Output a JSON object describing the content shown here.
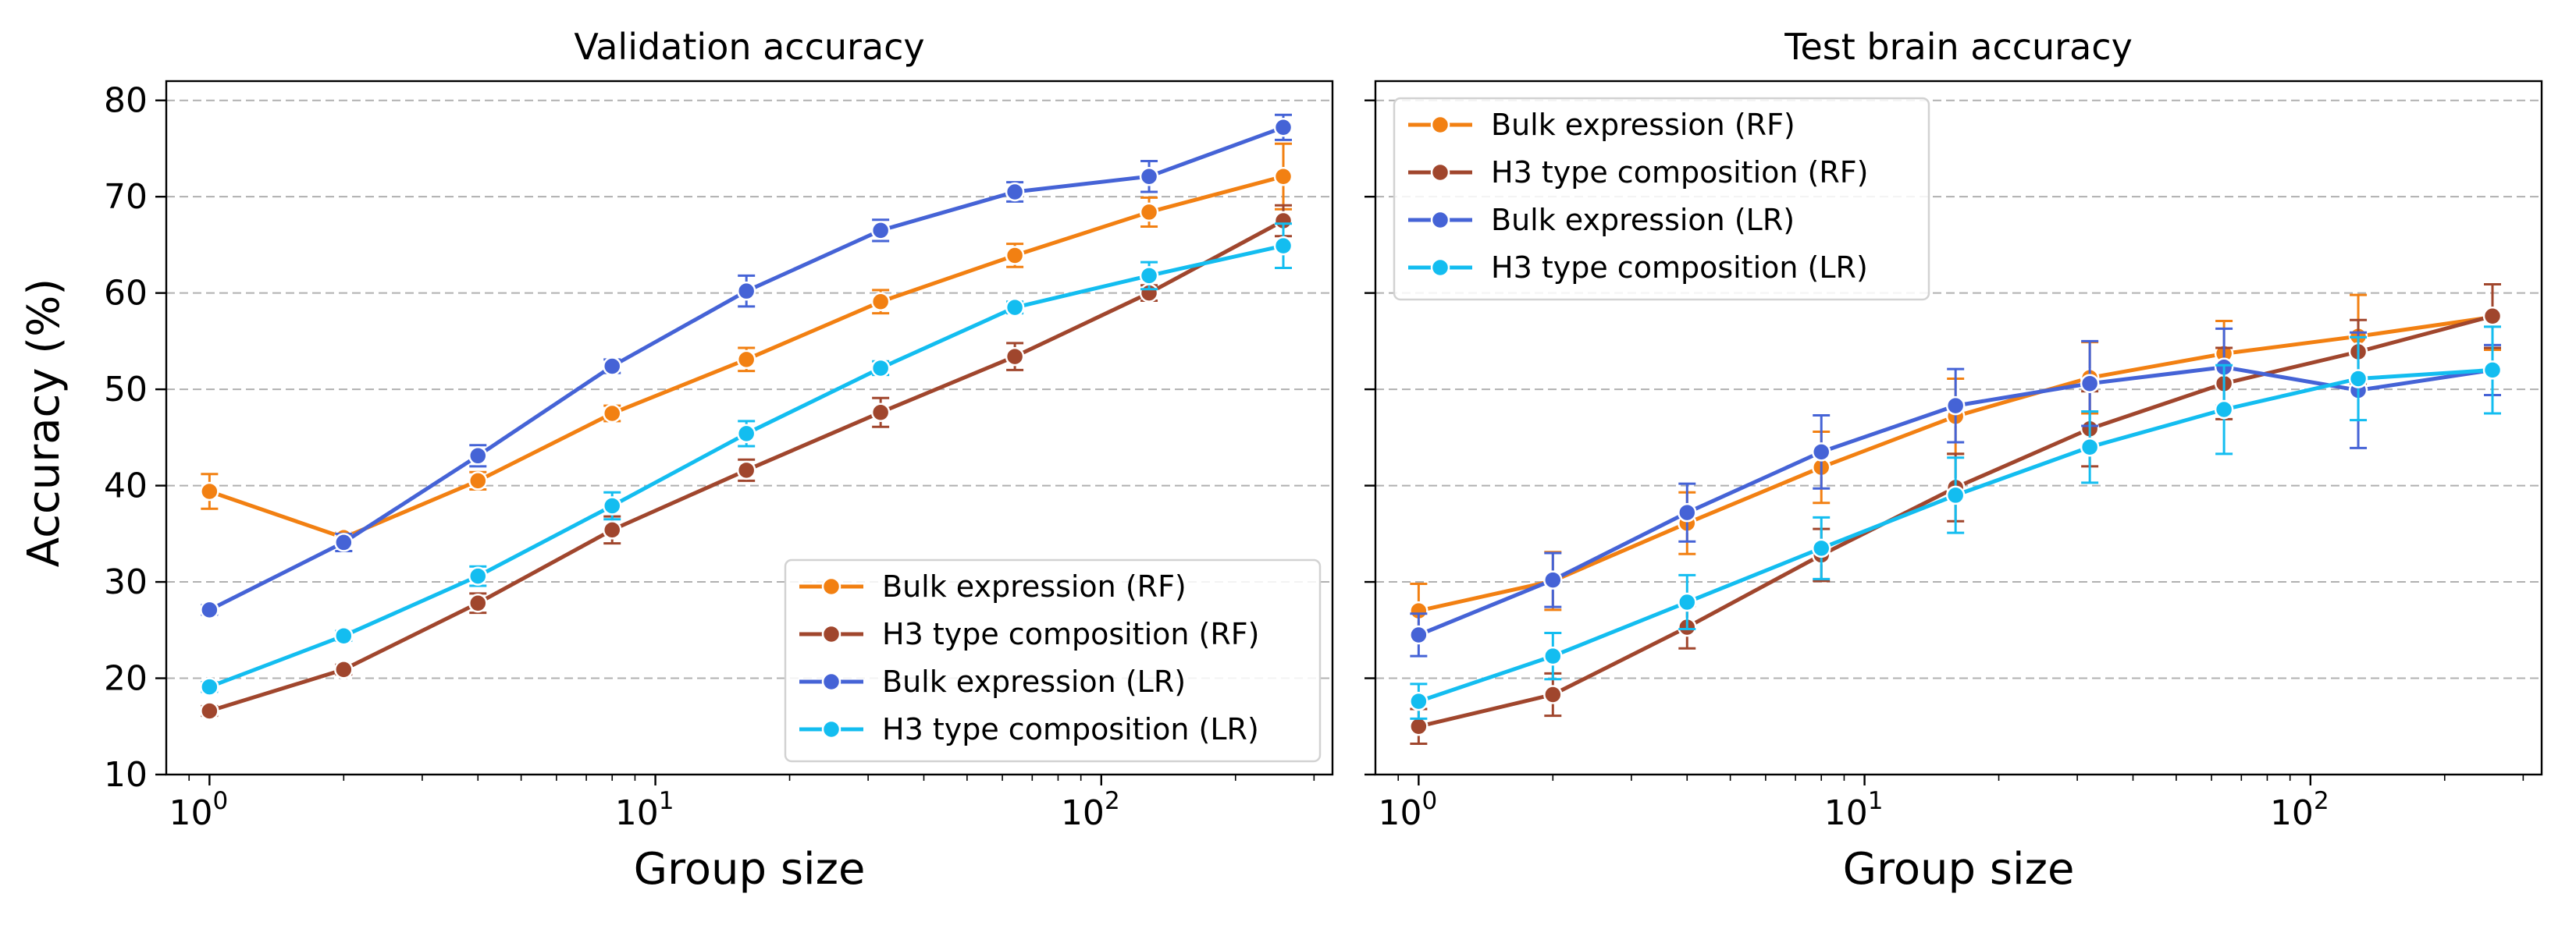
{
  "figure": {
    "ylabel": "Accuracy (%)"
  },
  "chart_data": [
    {
      "type": "line",
      "title": "Validation accuracy",
      "xlabel": "Group size",
      "ylabel": "Accuracy (%)",
      "xscale": "log",
      "xlim": [
        0.8,
        330
      ],
      "ylim": [
        10,
        82
      ],
      "yticks": [
        10,
        20,
        30,
        40,
        50,
        60,
        70,
        80
      ],
      "xticks": [
        {
          "base": "10",
          "exp": "0",
          "value": 1
        },
        {
          "base": "10",
          "exp": "1",
          "value": 10
        },
        {
          "base": "10",
          "exp": "2",
          "value": 100
        }
      ],
      "grid": "y dashed",
      "legend_position": "bottom-right",
      "x": [
        1,
        2,
        4,
        8,
        16,
        32,
        64,
        128,
        256
      ],
      "series": [
        {
          "name": "Bulk expression (RF)",
          "color": "#f28012",
          "values": [
            39.4,
            34.6,
            40.5,
            47.5,
            53.1,
            59.1,
            63.9,
            68.4,
            72.1
          ],
          "errors": [
            1.8,
            0.5,
            0.9,
            0.8,
            1.2,
            1.2,
            1.2,
            1.5,
            3.4
          ]
        },
        {
          "name": "H3 type composition (RF)",
          "color": "#a0462d",
          "values": [
            16.6,
            20.9,
            27.8,
            35.4,
            41.6,
            47.6,
            53.4,
            60.0,
            67.5
          ],
          "errors": [
            0.5,
            0.5,
            1.0,
            1.4,
            1.1,
            1.5,
            1.4,
            0.8,
            1.6
          ]
        },
        {
          "name": "Bulk expression (LR)",
          "color": "#4563d6",
          "values": [
            27.1,
            34.1,
            43.1,
            52.4,
            60.2,
            66.5,
            70.5,
            72.1,
            77.2
          ],
          "errors": [
            0.5,
            0.9,
            1.1,
            0.7,
            1.6,
            1.1,
            1.0,
            1.6,
            1.3
          ]
        },
        {
          "name": "H3 type composition (LR)",
          "color": "#13bdf0",
          "values": [
            19.1,
            24.4,
            30.6,
            37.9,
            45.4,
            52.2,
            58.5,
            61.8,
            64.9
          ],
          "errors": [
            0.5,
            0.5,
            1.0,
            1.4,
            1.3,
            0.7,
            0.6,
            1.4,
            2.3
          ]
        }
      ]
    },
    {
      "type": "line",
      "title": "Test brain accuracy",
      "xlabel": "Group size",
      "xscale": "log",
      "xlim": [
        0.8,
        330
      ],
      "ylim": [
        10,
        82
      ],
      "yticks": [
        10,
        20,
        30,
        40,
        50,
        60,
        70,
        80
      ],
      "xticks": [
        {
          "base": "10",
          "exp": "0",
          "value": 1
        },
        {
          "base": "10",
          "exp": "1",
          "value": 10
        },
        {
          "base": "10",
          "exp": "2",
          "value": 100
        }
      ],
      "grid": "y dashed",
      "legend_position": "top-left",
      "x": [
        1,
        2,
        4,
        8,
        16,
        32,
        64,
        128,
        256
      ],
      "series": [
        {
          "name": "Bulk expression (RF)",
          "color": "#f28012",
          "values": [
            27.0,
            30.1,
            36.1,
            41.9,
            47.2,
            51.2,
            53.7,
            55.5,
            57.5
          ],
          "errors": [
            2.8,
            3.0,
            3.2,
            3.7,
            3.9,
            3.7,
            3.4,
            4.3,
            3.4
          ]
        },
        {
          "name": "H3 type composition (RF)",
          "color": "#a0462d",
          "values": [
            15.0,
            18.3,
            25.3,
            32.8,
            39.8,
            45.9,
            50.6,
            53.9,
            57.6
          ],
          "errors": [
            1.8,
            2.2,
            2.2,
            2.7,
            3.5,
            3.9,
            3.7,
            3.3,
            3.3
          ]
        },
        {
          "name": "Bulk expression (LR)",
          "color": "#4563d6",
          "values": [
            24.5,
            30.2,
            37.2,
            43.5,
            48.3,
            50.6,
            52.3,
            49.9,
            52.0
          ],
          "errors": [
            2.2,
            2.8,
            3.0,
            3.8,
            3.8,
            4.4,
            4.0,
            6.0,
            2.6
          ]
        },
        {
          "name": "H3 type composition (LR)",
          "color": "#13bdf0",
          "values": [
            17.6,
            22.3,
            27.9,
            33.5,
            39.0,
            44.0,
            47.9,
            51.1,
            52.0
          ],
          "errors": [
            1.8,
            2.4,
            2.8,
            3.2,
            3.9,
            3.7,
            4.6,
            4.3,
            4.5
          ]
        }
      ]
    }
  ]
}
